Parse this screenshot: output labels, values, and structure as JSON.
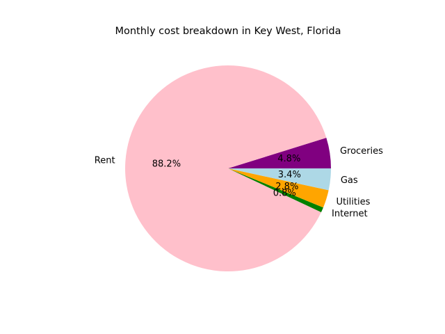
{
  "chart_data": {
    "type": "pie",
    "title": "Monthly cost breakdown in Key West, Florida",
    "start_angle_deg": 0,
    "direction": "counterclockwise",
    "slices": [
      {
        "label": "Groceries",
        "percent": 4.8,
        "percent_label": "4.8%",
        "color": "#800080"
      },
      {
        "label": "Rent",
        "percent": 88.2,
        "percent_label": "88.2%",
        "color": "#ffc0cb"
      },
      {
        "label": "Internet",
        "percent": 0.8,
        "percent_label": "0.8%",
        "color": "#008000"
      },
      {
        "label": "Utilities",
        "percent": 2.8,
        "percent_label": "2.8%",
        "color": "#ffa500"
      },
      {
        "label": "Gas",
        "percent": 3.4,
        "percent_label": "3.4%",
        "color": "#add8e6"
      }
    ]
  }
}
